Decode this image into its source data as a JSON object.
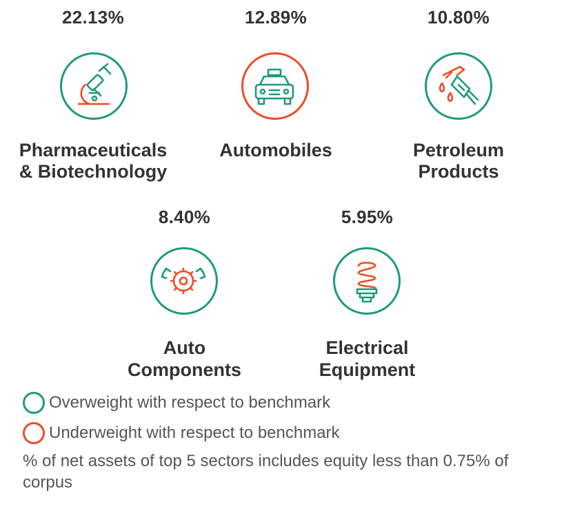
{
  "sectors": [
    {
      "percent": "22.13%",
      "name_line1": "Pharmaceuticals",
      "name_line2": "& Biotechnology",
      "weight": "overweight",
      "icon": "microscope-icon"
    },
    {
      "percent": "12.89%",
      "name_line1": "Automobiles",
      "name_line2": "",
      "weight": "underweight",
      "icon": "car-icon"
    },
    {
      "percent": "10.80%",
      "name_line1": "Petroleum",
      "name_line2": "Products",
      "weight": "overweight",
      "icon": "fuel-nozzle-icon"
    },
    {
      "percent": "8.40%",
      "name_line1": "Auto",
      "name_line2": "Components",
      "weight": "overweight",
      "icon": "gears-icon"
    },
    {
      "percent": "5.95%",
      "name_line1": "Electrical",
      "name_line2": "Equipment",
      "weight": "overweight",
      "icon": "cfl-bulb-icon"
    }
  ],
  "legend": {
    "overweight": "Overweight with respect to benchmark",
    "underweight": "Underweight with respect to benchmark"
  },
  "note": "% of net assets of top 5 sectors includes equity less than 0.75% of corpus",
  "colors": {
    "overweight": "#1c9a7d",
    "underweight": "#ef4b24",
    "text": "#333333"
  }
}
